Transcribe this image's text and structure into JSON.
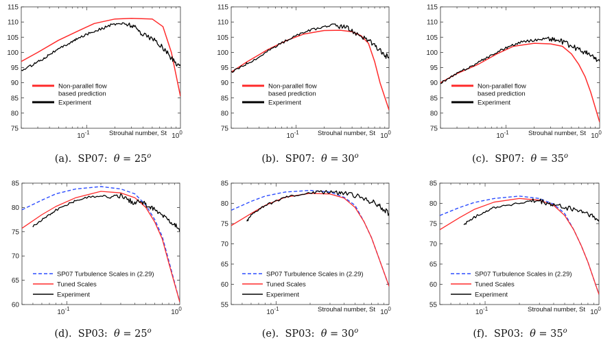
{
  "figure": {
    "colors": {
      "prediction": "#ff2a2a",
      "experiment": "#000000",
      "sp07_scales": "#2b4cff",
      "tuned": "#ff2a2a"
    }
  },
  "chart_data": [
    {
      "id": "a",
      "type": "line",
      "xscale": "log",
      "xlim": [
        0.02,
        1.0
      ],
      "ylim": [
        75,
        115
      ],
      "yticks": [
        75,
        80,
        85,
        90,
        95,
        100,
        105,
        110,
        115
      ],
      "xticks": [
        {
          "v": 0.1,
          "base": "10",
          "exp": "-1"
        },
        {
          "v": 1.0,
          "base": "10",
          "exp": "0"
        }
      ],
      "xlabel": "Strouhal number,  St",
      "legend": {
        "position": "lower-left",
        "entries": [
          "Non-parallel flow\nbased prediction",
          "Experiment"
        ]
      },
      "caption": {
        "prefix": "(a).  SP07:  ",
        "theta": "θ",
        "eq": " = 25",
        "sup": "o"
      },
      "series": [
        {
          "name": "Non-parallel flow\nbased prediction",
          "style": "prediction",
          "x": [
            0.02,
            0.03,
            0.05,
            0.08,
            0.12,
            0.2,
            0.3,
            0.5,
            0.65,
            0.8,
            1.0
          ],
          "y": [
            97,
            100,
            104,
            107,
            109.5,
            111,
            111.2,
            111,
            108.5,
            100,
            85.5
          ]
        },
        {
          "name": "Experiment",
          "style": "experiment",
          "x": [
            0.02,
            0.025,
            0.03,
            0.035,
            0.04,
            0.05,
            0.06,
            0.07,
            0.08,
            0.1,
            0.12,
            0.15,
            0.18,
            0.22,
            0.25,
            0.3,
            0.35,
            0.4,
            0.5,
            0.6,
            0.7,
            0.8,
            0.9,
            1.0
          ],
          "y": [
            94,
            95.5,
            97,
            98,
            99.5,
            101,
            102.5,
            103.5,
            104.5,
            106,
            107,
            108,
            109,
            109.5,
            109.5,
            109,
            107.5,
            106,
            104.5,
            102.5,
            100.5,
            98,
            96.5,
            95.5
          ]
        }
      ]
    },
    {
      "id": "b",
      "type": "line",
      "xscale": "log",
      "xlim": [
        0.02,
        1.0
      ],
      "ylim": [
        75,
        115
      ],
      "yticks": [
        75,
        80,
        85,
        90,
        95,
        100,
        105,
        110,
        115
      ],
      "xticks": [
        {
          "v": 0.1,
          "base": "10",
          "exp": "-1"
        },
        {
          "v": 1.0,
          "base": "10",
          "exp": "0"
        }
      ],
      "xlabel": "Strouhal number,  St",
      "legend": {
        "position": "lower-left",
        "entries": [
          "Non-parallel flow\nbased prediction",
          "Experiment"
        ]
      },
      "caption": {
        "prefix": "(b).  SP07:  ",
        "theta": "θ",
        "eq": " = 30",
        "sup": "o"
      },
      "series": [
        {
          "name": "Non-parallel flow\nbased prediction",
          "style": "prediction",
          "x": [
            0.02,
            0.03,
            0.05,
            0.08,
            0.12,
            0.2,
            0.3,
            0.4,
            0.5,
            0.6,
            0.7,
            0.8,
            1.0
          ],
          "y": [
            93.5,
            97,
            101,
            104,
            106,
            107.2,
            107.3,
            106.8,
            105.5,
            103,
            97,
            90,
            81
          ]
        },
        {
          "name": "Experiment",
          "style": "experiment",
          "x": [
            0.02,
            0.025,
            0.03,
            0.04,
            0.05,
            0.06,
            0.08,
            0.1,
            0.12,
            0.15,
            0.2,
            0.25,
            0.3,
            0.35,
            0.4,
            0.5,
            0.6,
            0.7,
            0.8,
            0.9,
            1.0
          ],
          "y": [
            93.5,
            95,
            96.5,
            98.5,
            100.5,
            102,
            104,
            105.5,
            106.5,
            107.5,
            108.5,
            109,
            108.5,
            108,
            107,
            105.5,
            104,
            102,
            100.5,
            99,
            98.5
          ]
        }
      ]
    },
    {
      "id": "c",
      "type": "line",
      "xscale": "log",
      "xlim": [
        0.02,
        1.0
      ],
      "ylim": [
        75,
        115
      ],
      "yticks": [
        75,
        80,
        85,
        90,
        95,
        100,
        105,
        110,
        115
      ],
      "xticks": [
        {
          "v": 0.1,
          "base": "10",
          "exp": "-1"
        },
        {
          "v": 1.0,
          "base": "10",
          "exp": "0"
        }
      ],
      "xlabel": "Strouhal number,  St",
      "legend": {
        "position": "lower-left",
        "entries": [
          "Non-parallel flow\nbased prediction",
          "Experiment"
        ]
      },
      "caption": {
        "prefix": "(c).  SP07:  ",
        "theta": "θ",
        "eq": " = 35",
        "sup": "o"
      },
      "series": [
        {
          "name": "Non-parallel flow\nbased prediction",
          "style": "prediction",
          "x": [
            0.02,
            0.03,
            0.05,
            0.08,
            0.12,
            0.2,
            0.3,
            0.4,
            0.5,
            0.6,
            0.7,
            0.8,
            1.0
          ],
          "y": [
            90,
            93,
            96,
            99.5,
            102,
            103,
            102.8,
            102,
            99.5,
            96,
            92,
            87,
            77
          ]
        },
        {
          "name": "Experiment",
          "style": "experiment",
          "x": [
            0.02,
            0.025,
            0.03,
            0.04,
            0.05,
            0.06,
            0.08,
            0.1,
            0.12,
            0.15,
            0.2,
            0.25,
            0.3,
            0.35,
            0.4,
            0.5,
            0.6,
            0.7,
            0.8,
            0.9,
            1.0
          ],
          "y": [
            90,
            91.5,
            93,
            95,
            96.5,
            98,
            100,
            101.5,
            102.5,
            103.5,
            104,
            104.5,
            104.5,
            104,
            103.5,
            102,
            101,
            100,
            99,
            98,
            97
          ]
        }
      ]
    },
    {
      "id": "d",
      "type": "line",
      "xscale": "log",
      "xlim": [
        0.04,
        1.0
      ],
      "ylim": [
        60,
        85
      ],
      "yticks": [
        60,
        65,
        70,
        75,
        80,
        85
      ],
      "xticks": [
        {
          "v": 0.1,
          "base": "10",
          "exp": "-1"
        },
        {
          "v": 1.0,
          "base": "10",
          "exp": "0"
        }
      ],
      "xlabel": "",
      "legend": {
        "position": "lower-left",
        "entries": [
          "SP07 Turbulence Scales in (2.29)",
          "Tuned Scales",
          "Experiment"
        ]
      },
      "caption": {
        "prefix": "(d).  SP03:  ",
        "theta": "θ",
        "eq": " = 25",
        "sup": "o"
      },
      "series": [
        {
          "name": "SP07 Turbulence Scales in (2.29)",
          "style": "sp07",
          "x": [
            0.04,
            0.06,
            0.08,
            0.12,
            0.2,
            0.3,
            0.4,
            0.5,
            0.6,
            0.7,
            0.8,
            1.0
          ],
          "y": [
            79.5,
            81.5,
            82.8,
            83.8,
            84.3,
            83.8,
            82.8,
            80.5,
            77.5,
            74,
            69,
            60.5
          ]
        },
        {
          "name": "Tuned Scales",
          "style": "tuned",
          "x": [
            0.04,
            0.06,
            0.08,
            0.12,
            0.2,
            0.3,
            0.4,
            0.5,
            0.6,
            0.7,
            0.8,
            1.0
          ],
          "y": [
            75.7,
            78.5,
            80.2,
            82,
            83.3,
            83,
            82,
            80,
            77,
            73.5,
            68.5,
            60.5
          ]
        },
        {
          "name": "Experiment",
          "style": "experiment",
          "x": [
            0.05,
            0.06,
            0.07,
            0.08,
            0.1,
            0.12,
            0.15,
            0.2,
            0.25,
            0.3,
            0.35,
            0.4,
            0.45,
            0.5,
            0.55,
            0.6,
            0.7,
            0.8,
            0.9,
            1.0
          ],
          "y": [
            76,
            77.5,
            78.5,
            79.5,
            80.5,
            81.5,
            82,
            82.5,
            82,
            82.5,
            81.5,
            81,
            81.5,
            80.5,
            80,
            79.5,
            78.5,
            77.5,
            76.5,
            75
          ]
        }
      ]
    },
    {
      "id": "e",
      "type": "line",
      "xscale": "log",
      "xlim": [
        0.04,
        1.0
      ],
      "ylim": [
        55,
        85
      ],
      "yticks": [
        55,
        60,
        65,
        70,
        75,
        80,
        85
      ],
      "xticks": [
        {
          "v": 0.1,
          "base": "10",
          "exp": "-1"
        },
        {
          "v": 1.0,
          "base": "10",
          "exp": "0"
        }
      ],
      "xlabel": "Strouhal number,  St",
      "legend": {
        "position": "lower-left",
        "entries": [
          "SP07 Turbulence Scales in (2.29)",
          "Tuned Scales",
          "Experiment"
        ]
      },
      "caption": {
        "prefix": "(e).  SP03:  ",
        "theta": "θ",
        "eq": " = 30",
        "sup": "o"
      },
      "series": [
        {
          "name": "SP07 Turbulence Scales in (2.29)",
          "style": "sp07",
          "x": [
            0.04,
            0.06,
            0.08,
            0.12,
            0.2,
            0.3,
            0.4,
            0.5,
            0.6,
            0.7,
            0.8,
            1.0
          ],
          "y": [
            78.3,
            80.5,
            81.8,
            82.8,
            83.2,
            82.8,
            81.5,
            79.5,
            75.5,
            71.5,
            67,
            59.5
          ]
        },
        {
          "name": "Tuned Scales",
          "style": "tuned",
          "x": [
            0.04,
            0.06,
            0.08,
            0.12,
            0.2,
            0.3,
            0.4,
            0.5,
            0.6,
            0.7,
            0.8,
            1.0
          ],
          "y": [
            74.5,
            77.5,
            79.5,
            81.5,
            82.5,
            82.3,
            81.3,
            79,
            75.5,
            71.5,
            67,
            59.5
          ]
        },
        {
          "name": "Experiment",
          "style": "experiment",
          "x": [
            0.055,
            0.06,
            0.07,
            0.08,
            0.1,
            0.12,
            0.15,
            0.2,
            0.25,
            0.3,
            0.35,
            0.4,
            0.5,
            0.6,
            0.7,
            0.8,
            0.9,
            1.0
          ],
          "y": [
            75.5,
            77,
            78.5,
            79.5,
            80.5,
            81.5,
            82,
            82.5,
            83,
            83,
            82.5,
            82.5,
            82,
            81,
            80.5,
            79.5,
            78.5,
            77.5
          ]
        }
      ]
    },
    {
      "id": "f",
      "type": "line",
      "xscale": "log",
      "xlim": [
        0.04,
        1.0
      ],
      "ylim": [
        55,
        85
      ],
      "yticks": [
        55,
        60,
        65,
        70,
        75,
        80,
        85
      ],
      "xticks": [
        {
          "v": 0.1,
          "base": "10",
          "exp": "-1"
        },
        {
          "v": 1.0,
          "base": "10",
          "exp": "0"
        }
      ],
      "xlabel": "Strouhal number,  St",
      "legend": {
        "position": "lower-left",
        "entries": [
          "SP07 Turbulence Scales in (2.29)",
          "Tuned Scales",
          "Experiment"
        ]
      },
      "caption": {
        "prefix": "(f).  SP03:  ",
        "theta": "θ",
        "eq": " = 35",
        "sup": "o"
      },
      "series": [
        {
          "name": "SP07 Turbulence Scales in (2.29)",
          "style": "sp07",
          "x": [
            0.04,
            0.06,
            0.08,
            0.12,
            0.2,
            0.3,
            0.4,
            0.5,
            0.6,
            0.7,
            0.8,
            1.0
          ],
          "y": [
            77,
            79,
            80.2,
            81.2,
            81.8,
            81.2,
            79.8,
            77.5,
            73.5,
            69.5,
            65.5,
            57.5
          ]
        },
        {
          "name": "Tuned Scales",
          "style": "tuned",
          "x": [
            0.04,
            0.06,
            0.08,
            0.12,
            0.2,
            0.3,
            0.4,
            0.5,
            0.6,
            0.7,
            0.8,
            1.0
          ],
          "y": [
            73.5,
            76.5,
            78.5,
            80.3,
            81.2,
            80.8,
            79.5,
            77,
            73.5,
            69.5,
            65.5,
            57.5
          ]
        },
        {
          "name": "Experiment",
          "style": "experiment",
          "x": [
            0.065,
            0.07,
            0.08,
            0.1,
            0.12,
            0.15,
            0.2,
            0.25,
            0.3,
            0.35,
            0.4,
            0.5,
            0.6,
            0.7,
            0.8,
            0.9,
            1.0
          ],
          "y": [
            74.5,
            75.5,
            76.5,
            78,
            79,
            79.5,
            80,
            80.5,
            80.5,
            80,
            79.5,
            79,
            78.5,
            78,
            77.5,
            76.5,
            75.5
          ]
        }
      ]
    }
  ]
}
